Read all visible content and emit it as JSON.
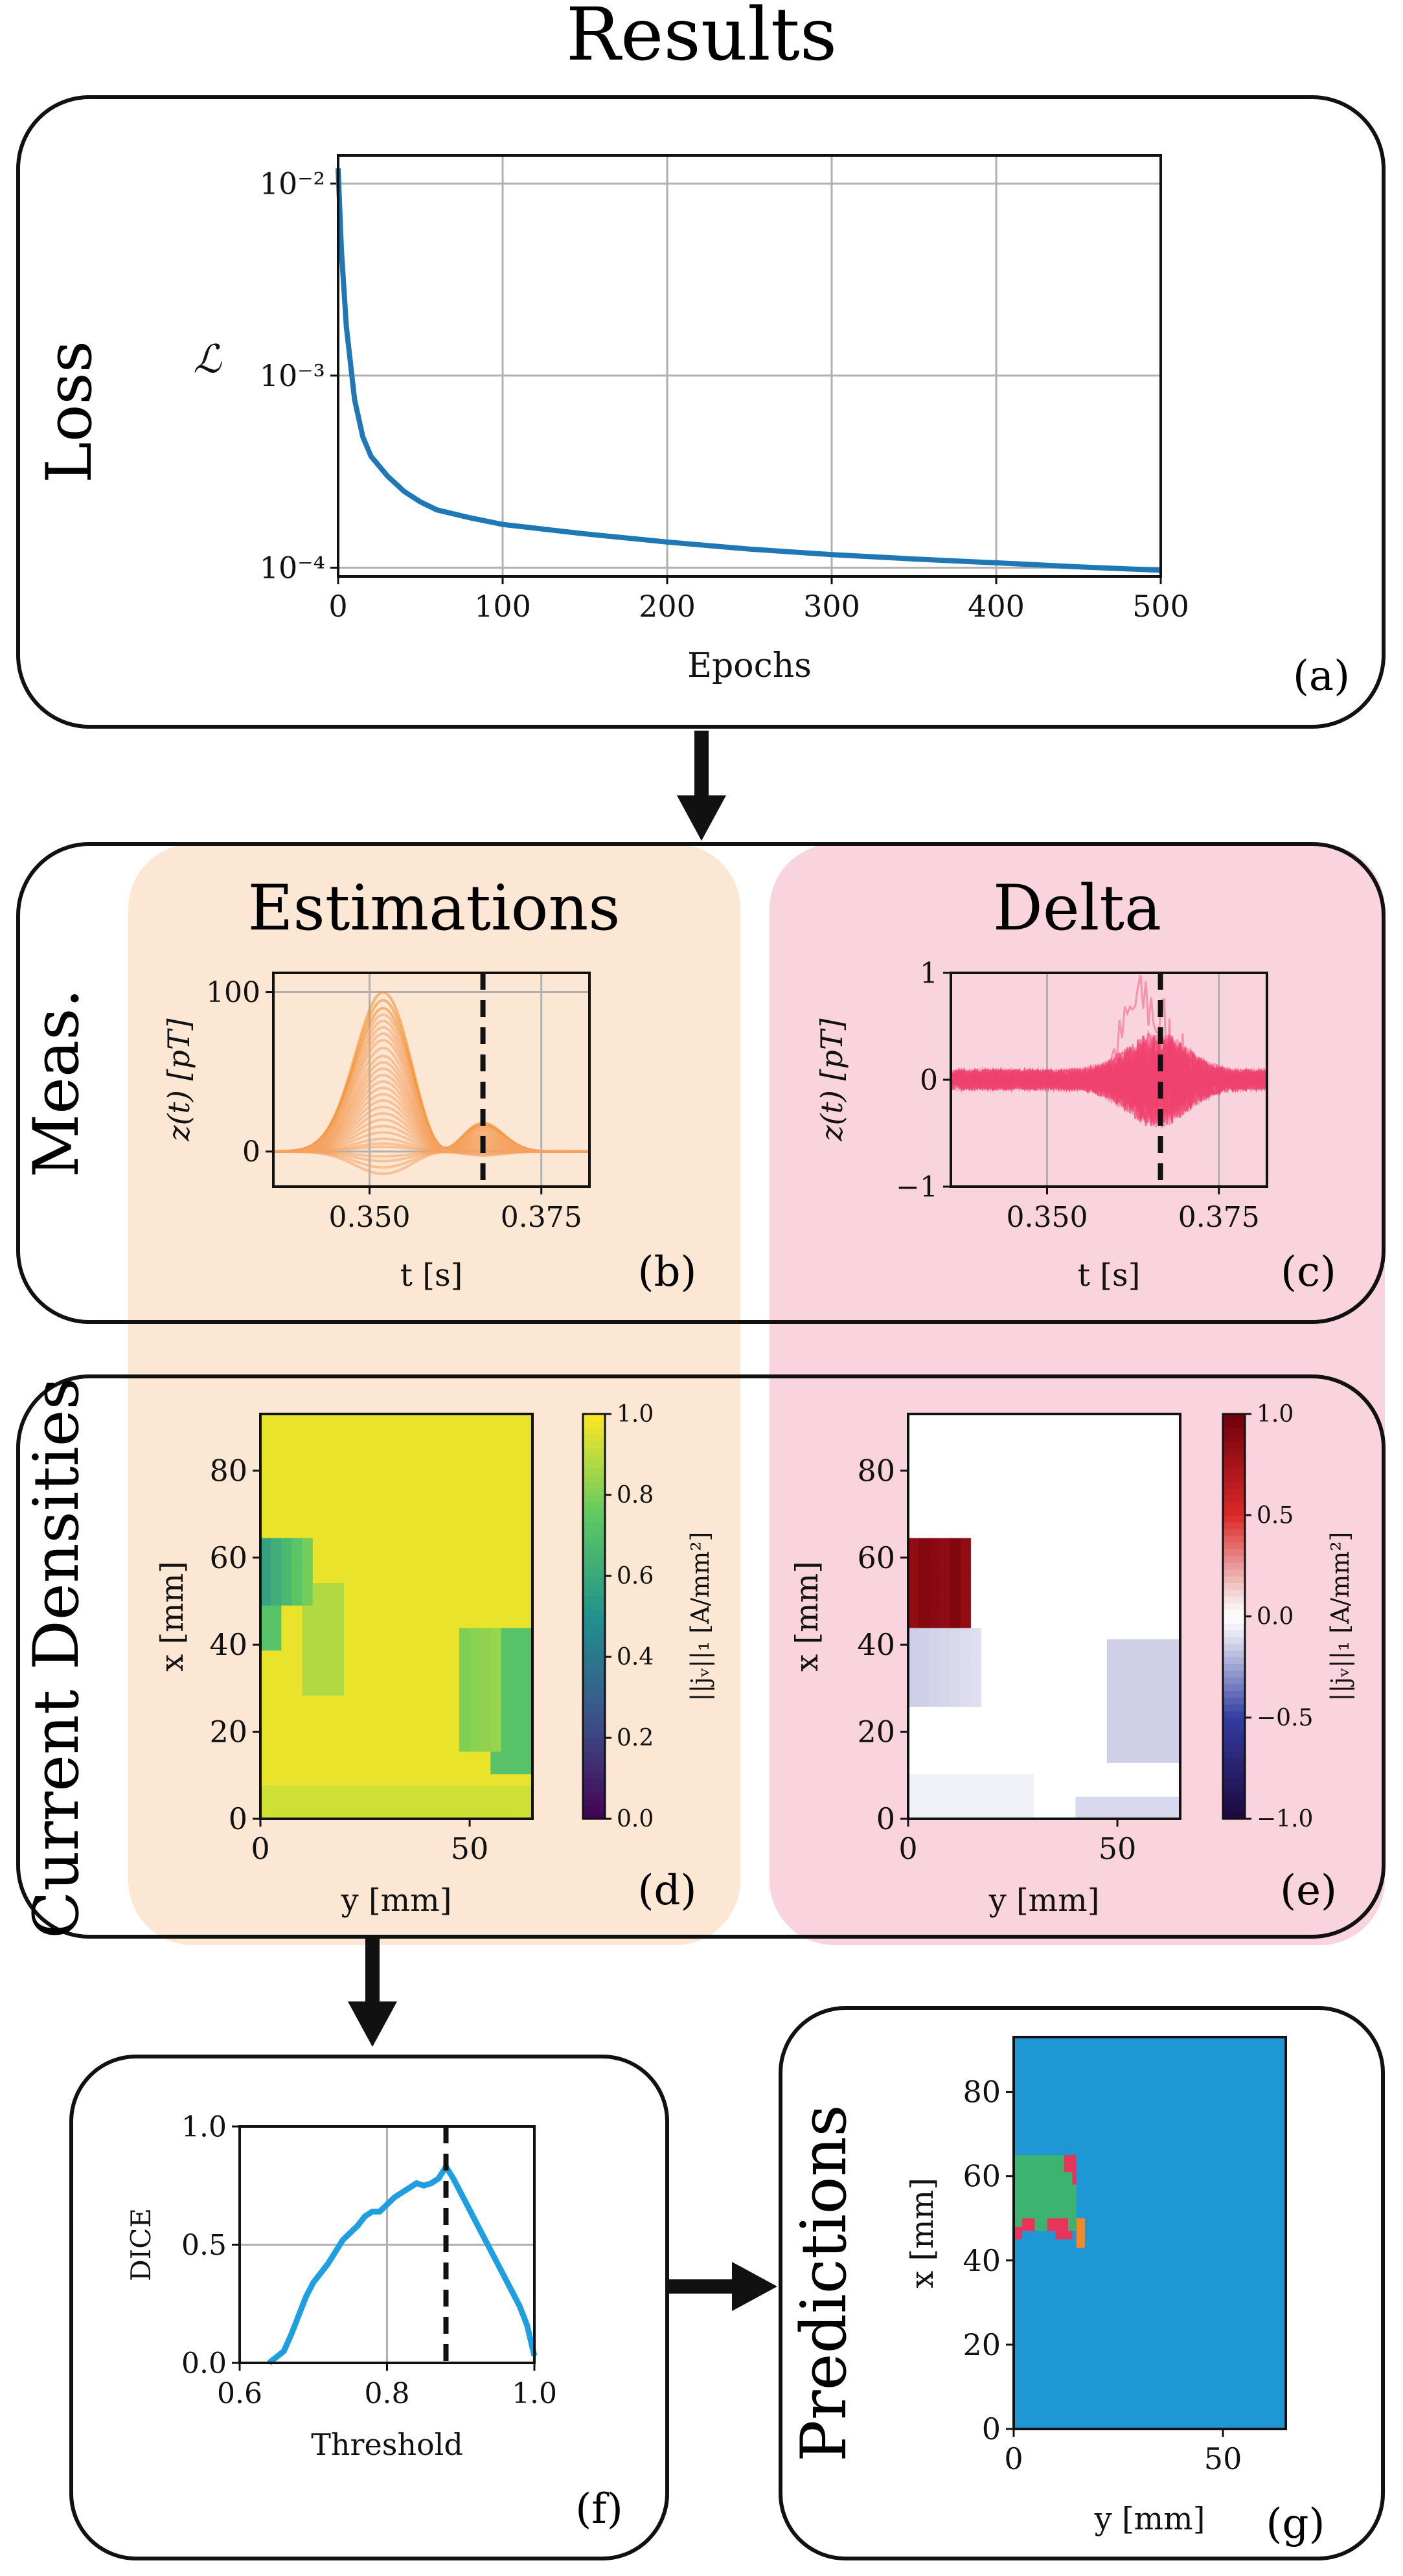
{
  "title": "Results",
  "sections": {
    "loss": "Loss",
    "meas": "Meas.",
    "current_densities": "Current Densities",
    "estimations": "Estimations",
    "delta": "Delta",
    "predictions": "Predictions"
  },
  "panel_labels": {
    "a": "(a)",
    "b": "(b)",
    "c": "(c)",
    "d": "(d)",
    "e": "(e)",
    "f": "(f)",
    "g": "(g)"
  },
  "colors": {
    "estimations_bg": "#fce6d4",
    "delta_bg": "#f9d3de",
    "loss_line": "#1f77b4",
    "est_traces": "#f4a261",
    "est_traces_strong": "#f08a24",
    "delta_traces": "#f0436e",
    "dice_line": "#1f9fe0",
    "grid": "#b0b0b0",
    "pred_background": "#1f97d4",
    "pred_green": "#3cb371",
    "pred_red": "#e8335a",
    "pred_orange": "#f08a2c"
  },
  "chart_data": [
    {
      "id": "loss",
      "type": "line",
      "title": "",
      "xlabel": "Epochs",
      "ylabel": "ℒ",
      "xlim": [
        0,
        500
      ],
      "ylim": [
        9e-05,
        0.014
      ],
      "yscale": "log",
      "grid": true,
      "xticks": [
        0,
        100,
        200,
        300,
        400,
        500
      ],
      "xtick_labels": [
        "0",
        "100",
        "200",
        "300",
        "400",
        "500"
      ],
      "yticks": [
        0.0001,
        0.001,
        0.01
      ],
      "ytick_labels": [
        "10⁻⁴",
        "10⁻³",
        "10⁻²"
      ],
      "x": [
        0,
        2,
        5,
        10,
        15,
        20,
        30,
        40,
        50,
        60,
        80,
        100,
        150,
        200,
        250,
        300,
        350,
        400,
        450,
        500
      ],
      "y": [
        0.012,
        0.0045,
        0.0018,
        0.00075,
        0.00048,
        0.00038,
        0.0003,
        0.00025,
        0.00022,
        0.0002,
        0.000182,
        0.000168,
        0.00015,
        0.000136,
        0.000125,
        0.000117,
        0.000111,
        0.000106,
        0.000101,
        9.7e-05
      ]
    },
    {
      "id": "estimations_meas",
      "type": "line",
      "xlabel": "t [s]",
      "ylabel": "z(t) [pT]",
      "xlim": [
        0.336,
        0.382
      ],
      "ylim": [
        -22,
        112
      ],
      "grid": true,
      "xticks": [
        0.35,
        0.375
      ],
      "xtick_labels": [
        "0.350",
        "0.375"
      ],
      "yticks": [
        0,
        100
      ],
      "ytick_labels": [
        "0",
        "100"
      ],
      "marker_line_x": 0.3665,
      "peak_t": 0.352,
      "second_t": 0.3665,
      "amplitudes": [
        100,
        95,
        90,
        86,
        82,
        78,
        74,
        70,
        65,
        60,
        56,
        52,
        48,
        44,
        40,
        36,
        32,
        28,
        24,
        20,
        16,
        12,
        8,
        5,
        3,
        -3,
        -6,
        -10,
        -14
      ],
      "series_count": 29
    },
    {
      "id": "delta_meas",
      "type": "line",
      "xlabel": "t [s]",
      "ylabel": "z(t) [pT]",
      "xlim": [
        0.336,
        0.382
      ],
      "ylim": [
        -1,
        1
      ],
      "grid": true,
      "xticks": [
        0.35,
        0.375
      ],
      "xtick_labels": [
        "0.350",
        "0.375"
      ],
      "yticks": [
        -1,
        0,
        1
      ],
      "ytick_labels": [
        "−1",
        "0",
        "1"
      ],
      "marker_line_x": 0.3665,
      "series_count": 40
    },
    {
      "id": "estimation_density",
      "type": "heatmap",
      "xlabel": "y [mm]",
      "ylabel": "x [mm]",
      "xlim": [
        0,
        65
      ],
      "ylim": [
        0,
        93
      ],
      "xticks": [
        0,
        50
      ],
      "xtick_labels": [
        "0",
        "50"
      ],
      "yticks": [
        0,
        20,
        40,
        60,
        80
      ],
      "ytick_labels": [
        "0",
        "20",
        "40",
        "60",
        "80"
      ],
      "colorbar_label": "||jᵥ||₁ [A/mm²]",
      "colorbar_ticks": [
        0.0,
        0.2,
        0.4,
        0.6,
        0.8,
        1.0
      ],
      "colorbar_tick_labels": [
        "0.0",
        "0.2",
        "0.4",
        "0.6",
        "0.8",
        "1.0"
      ],
      "vmin": 0.0,
      "vmax": 1.0
    },
    {
      "id": "delta_density",
      "type": "heatmap",
      "xlabel": "y [mm]",
      "ylabel": "x [mm]",
      "xlim": [
        0,
        65
      ],
      "ylim": [
        0,
        93
      ],
      "xticks": [
        0,
        50
      ],
      "xtick_labels": [
        "0",
        "50"
      ],
      "yticks": [
        0,
        20,
        40,
        60,
        80
      ],
      "ytick_labels": [
        "0",
        "20",
        "40",
        "60",
        "80"
      ],
      "colorbar_label": "||jᵥ||₁ [A/mm²]",
      "colorbar_ticks": [
        -1.0,
        -0.5,
        0.0,
        0.5,
        1.0
      ],
      "colorbar_tick_labels": [
        "−1.0",
        "−0.5",
        "0.0",
        "0.5",
        "1.0"
      ],
      "vmin": -1.0,
      "vmax": 1.0
    },
    {
      "id": "dice",
      "type": "line",
      "xlabel": "Threshold",
      "ylabel": "DICE",
      "xlim": [
        0.6,
        1.0
      ],
      "ylim": [
        0.0,
        1.0
      ],
      "grid": true,
      "xticks": [
        0.6,
        0.8,
        1.0
      ],
      "xtick_labels": [
        "0.6",
        "0.8",
        "1.0"
      ],
      "yticks": [
        0.0,
        0.5,
        1.0
      ],
      "ytick_labels": [
        "0.0",
        "0.5",
        "1.0"
      ],
      "marker_line_x": 0.88,
      "x": [
        0.64,
        0.66,
        0.67,
        0.68,
        0.69,
        0.7,
        0.71,
        0.72,
        0.73,
        0.74,
        0.75,
        0.76,
        0.77,
        0.78,
        0.79,
        0.8,
        0.81,
        0.82,
        0.83,
        0.84,
        0.85,
        0.86,
        0.87,
        0.88,
        0.89,
        0.9,
        0.91,
        0.92,
        0.93,
        0.94,
        0.95,
        0.96,
        0.97,
        0.98,
        0.99,
        1.0
      ],
      "y": [
        0.0,
        0.05,
        0.12,
        0.2,
        0.28,
        0.34,
        0.38,
        0.42,
        0.47,
        0.52,
        0.55,
        0.58,
        0.62,
        0.64,
        0.64,
        0.67,
        0.7,
        0.72,
        0.74,
        0.76,
        0.75,
        0.76,
        0.78,
        0.83,
        0.78,
        0.72,
        0.66,
        0.6,
        0.54,
        0.48,
        0.42,
        0.36,
        0.3,
        0.24,
        0.16,
        0.03
      ]
    },
    {
      "id": "predictions",
      "type": "heatmap",
      "xlabel": "y [mm]",
      "ylabel": "x [mm]",
      "xlim": [
        0,
        65
      ],
      "ylim": [
        0,
        93
      ],
      "xticks": [
        0,
        50
      ],
      "xtick_labels": [
        "0",
        "50"
      ],
      "yticks": [
        0,
        20,
        40,
        60,
        80
      ],
      "ytick_labels": [
        "0",
        "20",
        "40",
        "60",
        "80"
      ]
    }
  ]
}
